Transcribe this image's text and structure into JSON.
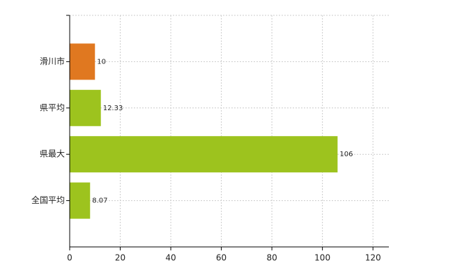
{
  "chart_data": {
    "type": "hbar",
    "categories": [
      "滑川市",
      "県平均",
      "県最大",
      "全国平均"
    ],
    "values": [
      10,
      12.33,
      106,
      8.07
    ],
    "colors": [
      "#e07820",
      "#9dc31e",
      "#9dc31e",
      "#9dc31e"
    ],
    "xlim": [
      0,
      126.3
    ],
    "xticks": [
      0,
      20,
      40,
      60,
      80,
      100,
      120
    ],
    "grid": true
  }
}
